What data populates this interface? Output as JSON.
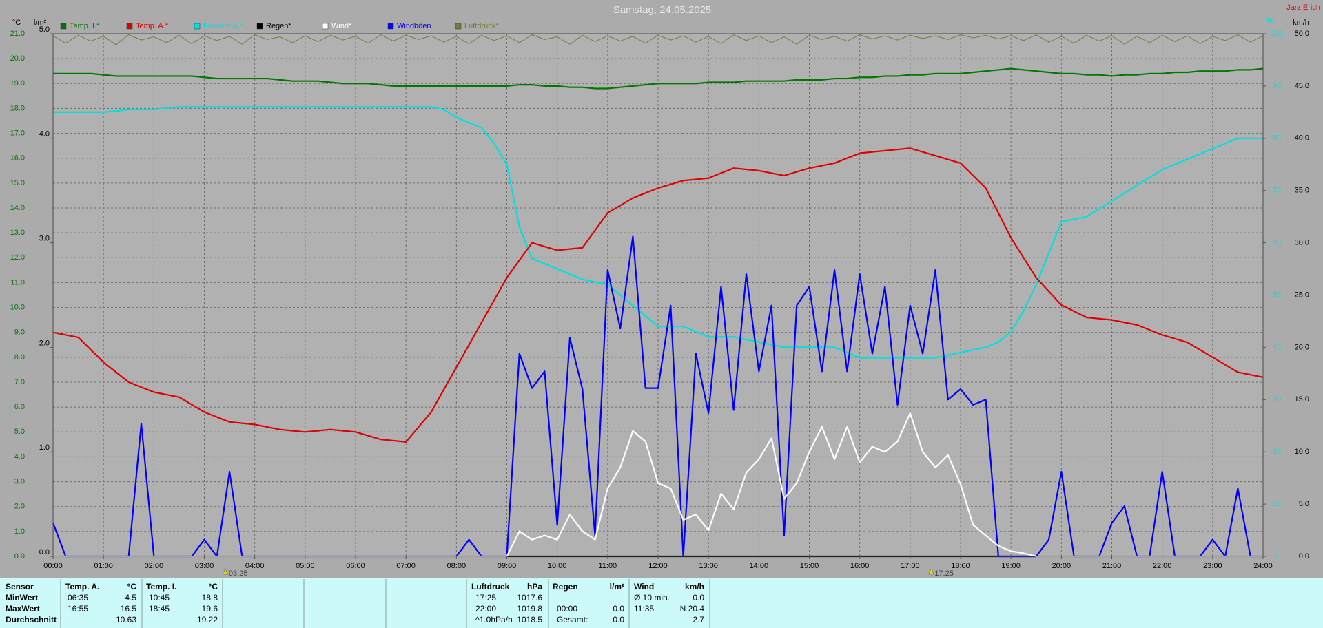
{
  "chart_data": {
    "type": "line",
    "title": "Samstag, 24.05.2025",
    "station": "Jarz Erich",
    "y_label": "°C",
    "y3_label": "l/m²",
    "y2_label": "%",
    "y4_label": "km/h",
    "x": [
      0,
      0.25,
      0.5,
      0.75,
      1,
      1.25,
      1.5,
      1.75,
      2,
      2.25,
      2.5,
      2.75,
      3,
      3.25,
      3.5,
      3.75,
      4,
      4.25,
      4.5,
      4.75,
      5,
      5.25,
      5.5,
      5.75,
      6,
      6.25,
      6.5,
      6.75,
      7,
      7.25,
      7.5,
      7.75,
      8,
      8.25,
      8.5,
      8.75,
      9,
      9.25,
      9.5,
      9.75,
      10,
      10.25,
      10.5,
      10.75,
      11,
      11.25,
      11.5,
      11.75,
      12,
      12.25,
      12.5,
      12.75,
      13,
      13.25,
      13.5,
      13.75,
      14,
      14.25,
      14.5,
      14.75,
      15,
      15.25,
      15.5,
      15.75,
      16,
      16.25,
      16.5,
      16.75,
      17,
      17.25,
      17.5,
      17.75,
      18,
      18.25,
      18.5,
      18.75,
      19,
      19.25,
      19.5,
      19.75,
      20,
      20.25,
      20.5,
      20.75,
      21,
      21.25,
      21.5,
      21.75,
      22,
      22.25,
      22.5,
      22.75,
      23,
      23.25,
      23.5,
      23.75,
      24
    ],
    "xlim": [
      0,
      24
    ],
    "xticks": [
      {
        "value": 0,
        "label": "00:00"
      },
      {
        "value": 1,
        "label": "01:00"
      },
      {
        "value": 2,
        "label": "02:00"
      },
      {
        "value": 3,
        "label": "03:00"
      },
      {
        "value": 4,
        "label": "04:00"
      },
      {
        "value": 5,
        "label": "05:00"
      },
      {
        "value": 6,
        "label": "06:00"
      },
      {
        "value": 7,
        "label": "07:00"
      },
      {
        "value": 8,
        "label": "08:00"
      },
      {
        "value": 9,
        "label": "09:00"
      },
      {
        "value": 10,
        "label": "10:00"
      },
      {
        "value": 11,
        "label": "11:00"
      },
      {
        "value": 12,
        "label": "12:00"
      },
      {
        "value": 13,
        "label": "13:00"
      },
      {
        "value": 14,
        "label": "14:00"
      },
      {
        "value": 15,
        "label": "15:00"
      },
      {
        "value": 16,
        "label": "16:00"
      },
      {
        "value": 17,
        "label": "17:00"
      },
      {
        "value": 18,
        "label": "18:00"
      },
      {
        "value": 19,
        "label": "19:00"
      },
      {
        "value": 20,
        "label": "20:00"
      },
      {
        "value": 21,
        "label": "21:00"
      },
      {
        "value": 22,
        "label": "22:00"
      },
      {
        "value": 23,
        "label": "23:00"
      },
      {
        "value": 24,
        "label": "24:00"
      }
    ],
    "ylim": [
      0,
      21
    ],
    "yticks": [
      {
        "value": 0,
        "label": "0.0"
      },
      {
        "value": 1,
        "label": "1.0"
      },
      {
        "value": 2,
        "label": "2.0"
      },
      {
        "value": 3,
        "label": "3.0"
      },
      {
        "value": 4,
        "label": "4.0"
      },
      {
        "value": 5,
        "label": "5.0"
      },
      {
        "value": 6,
        "label": "6.0"
      },
      {
        "value": 7,
        "label": "7.0"
      },
      {
        "value": 8,
        "label": "8.0"
      },
      {
        "value": 9,
        "label": "9.0"
      },
      {
        "value": 10,
        "label": "10.0"
      },
      {
        "value": 11,
        "label": "11.0"
      },
      {
        "value": 12,
        "label": "12.0"
      },
      {
        "value": 13,
        "label": "13.0"
      },
      {
        "value": 14,
        "label": "14.0"
      },
      {
        "value": 15,
        "label": "15.0"
      },
      {
        "value": 16,
        "label": "16.0"
      },
      {
        "value": 17,
        "label": "17.0"
      },
      {
        "value": 18,
        "label": "18.0"
      },
      {
        "value": 19,
        "label": "19.0"
      },
      {
        "value": 20,
        "label": "20.0"
      },
      {
        "value": 21,
        "label": "21.0"
      }
    ],
    "y2lim": [
      0,
      100
    ],
    "y2ticks": [
      0,
      10,
      20,
      30,
      40,
      50,
      60,
      70,
      80,
      90,
      100
    ],
    "y3lim": [
      0,
      5
    ],
    "y3ticks": [
      {
        "value": 0,
        "label": "0.0"
      },
      {
        "value": 1,
        "label": "1.0"
      },
      {
        "value": 2,
        "label": "2.0"
      },
      {
        "value": 3,
        "label": "3.0"
      },
      {
        "value": 4,
        "label": "4.0"
      },
      {
        "value": 5,
        "label": "5.0"
      }
    ],
    "y4lim": [
      0,
      50
    ],
    "y4ticks": [
      {
        "value": 0,
        "label": "0.0"
      },
      {
        "value": 5,
        "label": "5.0"
      },
      {
        "value": 10,
        "label": "10.0"
      },
      {
        "value": 15,
        "label": "15.0"
      },
      {
        "value": 20,
        "label": "20.0"
      },
      {
        "value": 25,
        "label": "25.0"
      },
      {
        "value": 30,
        "label": "30.0"
      },
      {
        "value": 35,
        "label": "35.0"
      },
      {
        "value": 40,
        "label": "40.0"
      },
      {
        "value": 45,
        "label": "45.0"
      },
      {
        "value": 50,
        "label": "50.0"
      }
    ],
    "grid": true,
    "legend": "top",
    "series": [
      {
        "name": "Temp. I.*",
        "color": "#007800",
        "axis": "y",
        "values": [
          19.4,
          19.4,
          19.4,
          19.4,
          19.35,
          19.3,
          19.3,
          19.3,
          19.3,
          19.3,
          19.3,
          19.3,
          19.25,
          19.2,
          19.2,
          19.2,
          19.2,
          19.2,
          19.15,
          19.1,
          19.1,
          19.1,
          19.05,
          19.0,
          19.0,
          19.0,
          18.95,
          18.9,
          18.9,
          18.9,
          18.9,
          18.9,
          18.9,
          18.9,
          18.9,
          18.9,
          18.9,
          18.95,
          18.95,
          18.9,
          18.9,
          18.85,
          18.85,
          18.8,
          18.8,
          18.85,
          18.9,
          18.95,
          19.0,
          19.0,
          19.0,
          19.0,
          19.05,
          19.05,
          19.05,
          19.1,
          19.1,
          19.1,
          19.1,
          19.15,
          19.15,
          19.15,
          19.2,
          19.2,
          19.25,
          19.25,
          19.3,
          19.3,
          19.35,
          19.35,
          19.4,
          19.4,
          19.4,
          19.45,
          19.5,
          19.55,
          19.6,
          19.55,
          19.5,
          19.45,
          19.4,
          19.4,
          19.35,
          19.35,
          19.3,
          19.35,
          19.35,
          19.4,
          19.4,
          19.45,
          19.45,
          19.5,
          19.5,
          19.5,
          19.55,
          19.55,
          19.6
        ]
      },
      {
        "name": "Temp. A.*",
        "color": "#e00000",
        "axis": "y",
        "values": [
          9.0,
          8.9,
          8.8,
          8.3,
          7.8,
          7.4,
          7.0,
          6.8,
          6.6,
          6.5,
          6.4,
          6.1,
          5.8,
          5.6,
          5.4,
          5.35,
          5.3,
          5.2,
          5.1,
          5.05,
          5.0,
          5.05,
          5.1,
          5.05,
          5.0,
          4.85,
          4.7,
          4.65,
          4.6,
          5.2,
          5.8,
          6.7,
          7.6,
          8.5,
          9.4,
          10.3,
          11.2,
          11.9,
          12.6,
          12.45,
          12.3,
          12.35,
          12.4,
          13.1,
          13.8,
          14.1,
          14.4,
          14.6,
          14.8,
          14.95,
          15.1,
          15.15,
          15.2,
          15.4,
          15.6,
          15.55,
          15.5,
          15.4,
          15.3,
          15.45,
          15.6,
          15.7,
          15.8,
          16.0,
          16.2,
          16.25,
          16.3,
          16.35,
          16.4,
          16.25,
          16.1,
          15.95,
          15.8,
          15.3,
          14.8,
          13.8,
          12.8,
          12.0,
          11.2,
          10.65,
          10.1,
          9.85,
          9.6,
          9.55,
          9.5,
          9.4,
          9.3,
          9.1,
          8.9,
          8.75,
          8.6,
          8.3,
          8.0,
          7.7,
          7.4,
          7.3,
          7.2
        ]
      },
      {
        "name": "Feuchte A.*",
        "color": "#00e0e0",
        "axis": "y2",
        "values": [
          85,
          85,
          85,
          85,
          85,
          85.2,
          85.5,
          85.5,
          85.5,
          85.8,
          86,
          86,
          86,
          86,
          86,
          86,
          86,
          86,
          86,
          86,
          86,
          86,
          86,
          86,
          86,
          86,
          86,
          86,
          86,
          86,
          86,
          85.5,
          84,
          83,
          82,
          79,
          75,
          63,
          57,
          56,
          55,
          54,
          53,
          52.5,
          52,
          50,
          48,
          46,
          44,
          44,
          44,
          43,
          42,
          42,
          42,
          41.5,
          41,
          40.5,
          40,
          40,
          40,
          40,
          40,
          39,
          38,
          38,
          38,
          38,
          38,
          38,
          38,
          38.5,
          39,
          39.5,
          40,
          41,
          43,
          47,
          52,
          58,
          64,
          64.5,
          65,
          66.5,
          68,
          69.5,
          71,
          72.5,
          74,
          75,
          76,
          77,
          78,
          79,
          80,
          80,
          80
        ]
      },
      {
        "name": "Regen*",
        "color": "#000000",
        "axis": "y3",
        "values": [
          0,
          0,
          0,
          0,
          0,
          0,
          0,
          0,
          0,
          0,
          0,
          0,
          0,
          0,
          0,
          0,
          0,
          0,
          0,
          0,
          0,
          0,
          0,
          0,
          0,
          0,
          0,
          0,
          0,
          0,
          0,
          0,
          0,
          0,
          0,
          0,
          0,
          0,
          0,
          0,
          0,
          0,
          0,
          0,
          0,
          0,
          0,
          0,
          0,
          0,
          0,
          0,
          0,
          0,
          0,
          0,
          0,
          0,
          0,
          0,
          0,
          0,
          0,
          0,
          0,
          0,
          0,
          0,
          0,
          0,
          0,
          0,
          0,
          0,
          0,
          0,
          0,
          0,
          0,
          0,
          0,
          0,
          0,
          0,
          0,
          0,
          0,
          0,
          0,
          0,
          0,
          0,
          0,
          0,
          0,
          0,
          0
        ]
      },
      {
        "name": "Wind*",
        "color": "#ffffff",
        "axis": "y4",
        "values": [
          0,
          0,
          0,
          0,
          0,
          0,
          0,
          0,
          0,
          0,
          0,
          0,
          0,
          0,
          0,
          0,
          0,
          0,
          0,
          0,
          0,
          0,
          0,
          0,
          0,
          0,
          0,
          0,
          0,
          0,
          0,
          0,
          0,
          0,
          0,
          0,
          0,
          2.4,
          1.6,
          2.0,
          1.6,
          4.0,
          2.4,
          1.6,
          6.5,
          8.5,
          12,
          11,
          7,
          6.5,
          3.5,
          4,
          2.5,
          6,
          4.5,
          8,
          9.3,
          11.3,
          5.5,
          7,
          10,
          12.4,
          9.3,
          12.4,
          9,
          10.5,
          10,
          11,
          13.7,
          10,
          8.5,
          9.7,
          6.9,
          3,
          2,
          1,
          0.5,
          0.3,
          0,
          0,
          0,
          0,
          0,
          0,
          0,
          0,
          0,
          0,
          0,
          0,
          0,
          0,
          0,
          0,
          0,
          0,
          0
        ]
      },
      {
        "name": "Windböen",
        "color": "#0000ff",
        "axis": "y4",
        "values": [
          3.2,
          0,
          0,
          0,
          0,
          0,
          0,
          12.7,
          0,
          0,
          0,
          0,
          1.6,
          0,
          8.1,
          0,
          0,
          0,
          0,
          0,
          0,
          0,
          0,
          0,
          0,
          0,
          0,
          0,
          0,
          0,
          0,
          0,
          0,
          1.6,
          0,
          0,
          0,
          19.4,
          16.1,
          17.7,
          3,
          20.9,
          16,
          2,
          27.4,
          21.8,
          30.6,
          16.1,
          16.1,
          24,
          0,
          19.4,
          13.7,
          25.8,
          14,
          27,
          17.7,
          24,
          2,
          24,
          25.8,
          17.7,
          27.4,
          17.7,
          27,
          19.4,
          25.8,
          14.5,
          24,
          19.4,
          27.4,
          15,
          16,
          14.5,
          15,
          0,
          0,
          0,
          0,
          1.6,
          8.1,
          0,
          0,
          0,
          3.2,
          4.8,
          0,
          0,
          8.1,
          0,
          0,
          0,
          1.6,
          0,
          6.5,
          0,
          0
        ]
      },
      {
        "name": "Luftdruck*",
        "color": "#7a7a3c",
        "axis": "y2",
        "values": [
          99.6,
          98.2,
          99.7,
          98.6,
          99.5,
          97.9,
          99.8,
          98.8,
          99.4,
          98.3,
          99.7,
          98.1,
          99.6,
          98.7,
          99.5,
          98.0,
          99.8,
          98.9,
          99.4,
          98.3,
          99.6,
          98.5,
          99.7,
          98.8,
          99.5,
          98.2,
          99.8,
          98.6,
          99.7,
          98.9,
          99.6,
          98.4,
          99.5,
          98.1,
          99.7,
          98.7,
          99.6,
          98.3,
          99.8,
          98.9,
          99.4,
          98.0,
          99.7,
          98.5,
          99.6,
          98.6,
          99.5,
          98.2,
          99.7,
          98.8,
          99.6,
          98.4,
          99.5,
          98.1,
          99.8,
          98.7,
          99.6,
          98.3,
          99.4,
          98.0,
          99.7,
          98.9,
          99.5,
          98.6,
          99.8,
          99.0,
          99.6,
          98.8,
          99.7,
          99.1,
          99.6,
          98.9,
          99.8,
          99.2,
          99.7,
          99.0,
          99.6,
          98.7,
          99.8,
          98.4,
          99.5,
          98.2,
          99.7,
          98.6,
          99.6,
          98.0,
          99.5,
          98.3,
          99.7,
          98.5,
          99.6,
          98.1,
          99.5,
          98.7,
          99.8,
          98.4,
          99.6
        ]
      }
    ],
    "annotations": [
      {
        "x": 3.4167,
        "text": "03:25"
      },
      {
        "x": 17.4167,
        "text": "17:25"
      }
    ]
  },
  "stats": {
    "header": [
      "Sensor",
      "Temp. A.",
      "°C",
      "Temp. I.",
      "°C",
      "Luftdruck",
      "hPa",
      "Regen",
      "l/m²",
      "Wind",
      "km/h"
    ],
    "rows": [
      [
        "MinWert",
        "06:35",
        "4.5",
        "10:45",
        "18.8",
        "17:25",
        "1017.6",
        null,
        null,
        "Ø 10 min.",
        "0.0"
      ],
      [
        "MaxWert",
        "16:55",
        "16.5",
        "18:45",
        "19.6",
        "22:00",
        "1019.8",
        "00:00",
        "0.0",
        "11:35",
        "N 20.4"
      ],
      [
        "Durchschnitt",
        null,
        "10.63",
        null,
        "19.22",
        "^1.0hPa/h",
        "1018.5",
        "Gesamt:",
        "0.0",
        null,
        "2.7"
      ]
    ]
  }
}
